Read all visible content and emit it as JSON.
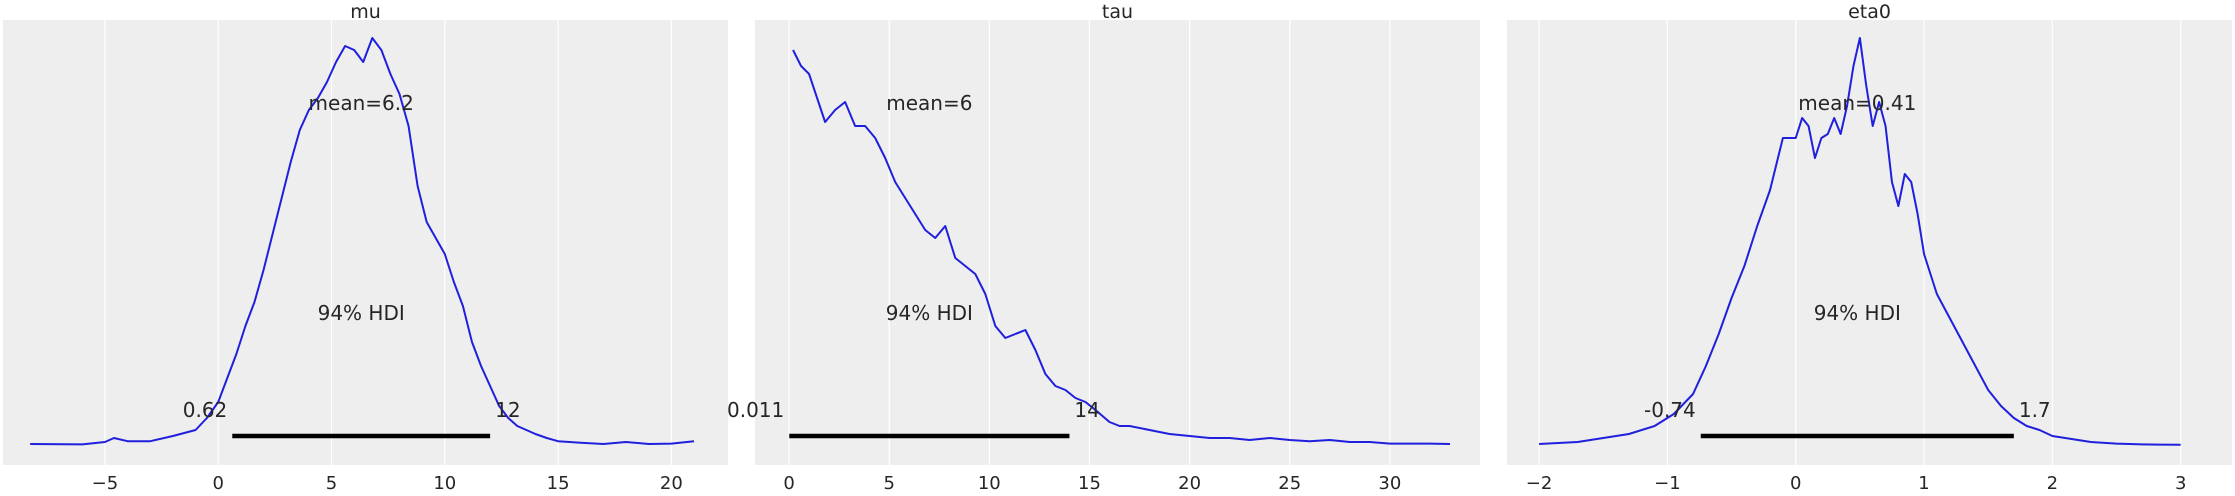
{
  "colors": {
    "background": "#eeeeee",
    "grid": "#ffffff",
    "curve": "#1f1fdd",
    "hdi": "#000000",
    "text": "#262626"
  },
  "chart_data": [
    {
      "type": "line",
      "title": "mu",
      "mean_label": "mean=6.2",
      "hdi_label": "94% HDI",
      "hdi": {
        "low": 0.62,
        "high": 12,
        "low_label": "0.62",
        "high_label": "12"
      },
      "xlim": [
        -9.5,
        22.5
      ],
      "ylim": [
        0,
        1.1
      ],
      "xticks": [
        -5,
        0,
        5,
        10,
        15,
        20
      ],
      "xtick_labels": [
        "−5",
        "0",
        "5",
        "10",
        "15",
        "20"
      ],
      "grid": true,
      "x": [
        -8.3,
        -6,
        -5,
        -4.6,
        -4,
        -3,
        -2,
        -1,
        -0.5,
        0,
        0.4,
        0.8,
        1.2,
        1.6,
        2,
        2.4,
        2.8,
        3.2,
        3.6,
        4,
        4.4,
        4.8,
        5.2,
        5.6,
        6,
        6.4,
        6.8,
        7.2,
        7.6,
        8,
        8.4,
        8.8,
        9.2,
        9.6,
        10,
        10.4,
        10.8,
        11.2,
        11.6,
        12,
        12.4,
        12.8,
        13.2,
        13.6,
        14,
        14.5,
        15,
        16,
        17,
        18,
        19,
        20,
        21
      ],
      "y": [
        0.005,
        0.004,
        0.01,
        0.02,
        0.012,
        0.012,
        0.025,
        0.04,
        0.07,
        0.11,
        0.17,
        0.23,
        0.3,
        0.36,
        0.44,
        0.53,
        0.62,
        0.71,
        0.79,
        0.84,
        0.87,
        0.91,
        0.96,
        1.0,
        0.99,
        0.96,
        1.02,
        0.99,
        0.93,
        0.88,
        0.8,
        0.65,
        0.56,
        0.52,
        0.48,
        0.41,
        0.35,
        0.26,
        0.2,
        0.15,
        0.1,
        0.07,
        0.05,
        0.04,
        0.03,
        0.02,
        0.012,
        0.008,
        0.005,
        0.01,
        0.005,
        0.006,
        0.012
      ]
    },
    {
      "type": "line",
      "title": "tau",
      "mean_label": "mean=6",
      "hdi_label": "94% HDI",
      "hdi": {
        "low": 0.011,
        "high": 14,
        "low_label": "0.011",
        "high_label": "14"
      },
      "xlim": [
        -1.7,
        34.5
      ],
      "ylim": [
        0,
        1.1
      ],
      "xticks": [
        0,
        5,
        10,
        15,
        20,
        25,
        30
      ],
      "xtick_labels": [
        "0",
        "5",
        "10",
        "15",
        "20",
        "25",
        "30"
      ],
      "grid": true,
      "x": [
        0.2,
        0.6,
        1.0,
        1.4,
        1.8,
        2.3,
        2.8,
        3.3,
        3.8,
        4.3,
        4.8,
        5.3,
        5.8,
        6.3,
        6.8,
        7.3,
        7.8,
        8.3,
        8.8,
        9.3,
        9.8,
        10.3,
        10.8,
        11.3,
        11.8,
        12.3,
        12.8,
        13.3,
        13.8,
        14.3,
        14.8,
        15.3,
        16,
        16.5,
        17,
        18,
        19,
        20,
        21,
        22,
        23,
        24,
        25,
        26,
        27,
        28,
        29,
        30,
        31,
        32,
        33
      ],
      "y": [
        0.99,
        0.95,
        0.93,
        0.87,
        0.81,
        0.84,
        0.86,
        0.8,
        0.8,
        0.77,
        0.72,
        0.66,
        0.62,
        0.58,
        0.54,
        0.52,
        0.55,
        0.47,
        0.45,
        0.43,
        0.38,
        0.3,
        0.27,
        0.28,
        0.29,
        0.24,
        0.18,
        0.15,
        0.14,
        0.12,
        0.11,
        0.09,
        0.06,
        0.05,
        0.05,
        0.04,
        0.03,
        0.025,
        0.02,
        0.02,
        0.015,
        0.02,
        0.015,
        0.012,
        0.015,
        0.01,
        0.01,
        0.006,
        0.006,
        0.006,
        0.005
      ]
    },
    {
      "type": "line",
      "title": "eta0",
      "mean_label": "mean=0.41",
      "hdi_label": "94% HDI",
      "hdi": {
        "low": -0.74,
        "high": 1.7,
        "low_label": "-0.74",
        "high_label": "1.7"
      },
      "xlim": [
        -2.25,
        3.4
      ],
      "ylim": [
        0,
        1.1
      ],
      "xticks": [
        -2,
        -1,
        0,
        1,
        2,
        3
      ],
      "xtick_labels": [
        "−2",
        "−1",
        "0",
        "1",
        "2",
        "3"
      ],
      "grid": true,
      "x": [
        -2.0,
        -1.7,
        -1.5,
        -1.3,
        -1.1,
        -0.95,
        -0.8,
        -0.7,
        -0.6,
        -0.5,
        -0.4,
        -0.3,
        -0.2,
        -0.1,
        0,
        0.05,
        0.1,
        0.15,
        0.2,
        0.25,
        0.3,
        0.35,
        0.4,
        0.45,
        0.5,
        0.55,
        0.6,
        0.65,
        0.7,
        0.75,
        0.8,
        0.85,
        0.9,
        0.95,
        1.0,
        1.1,
        1.2,
        1.3,
        1.4,
        1.5,
        1.6,
        1.7,
        1.8,
        1.9,
        2.0,
        2.1,
        2.3,
        2.5,
        2.7,
        3.0
      ],
      "y": [
        0.005,
        0.01,
        0.02,
        0.03,
        0.05,
        0.08,
        0.13,
        0.2,
        0.28,
        0.37,
        0.45,
        0.55,
        0.64,
        0.77,
        0.77,
        0.82,
        0.8,
        0.72,
        0.77,
        0.78,
        0.82,
        0.78,
        0.85,
        0.95,
        1.02,
        0.9,
        0.8,
        0.86,
        0.8,
        0.66,
        0.6,
        0.68,
        0.66,
        0.58,
        0.48,
        0.38,
        0.32,
        0.26,
        0.2,
        0.14,
        0.1,
        0.07,
        0.05,
        0.04,
        0.025,
        0.02,
        0.01,
        0.006,
        0.004,
        0.003
      ]
    }
  ]
}
